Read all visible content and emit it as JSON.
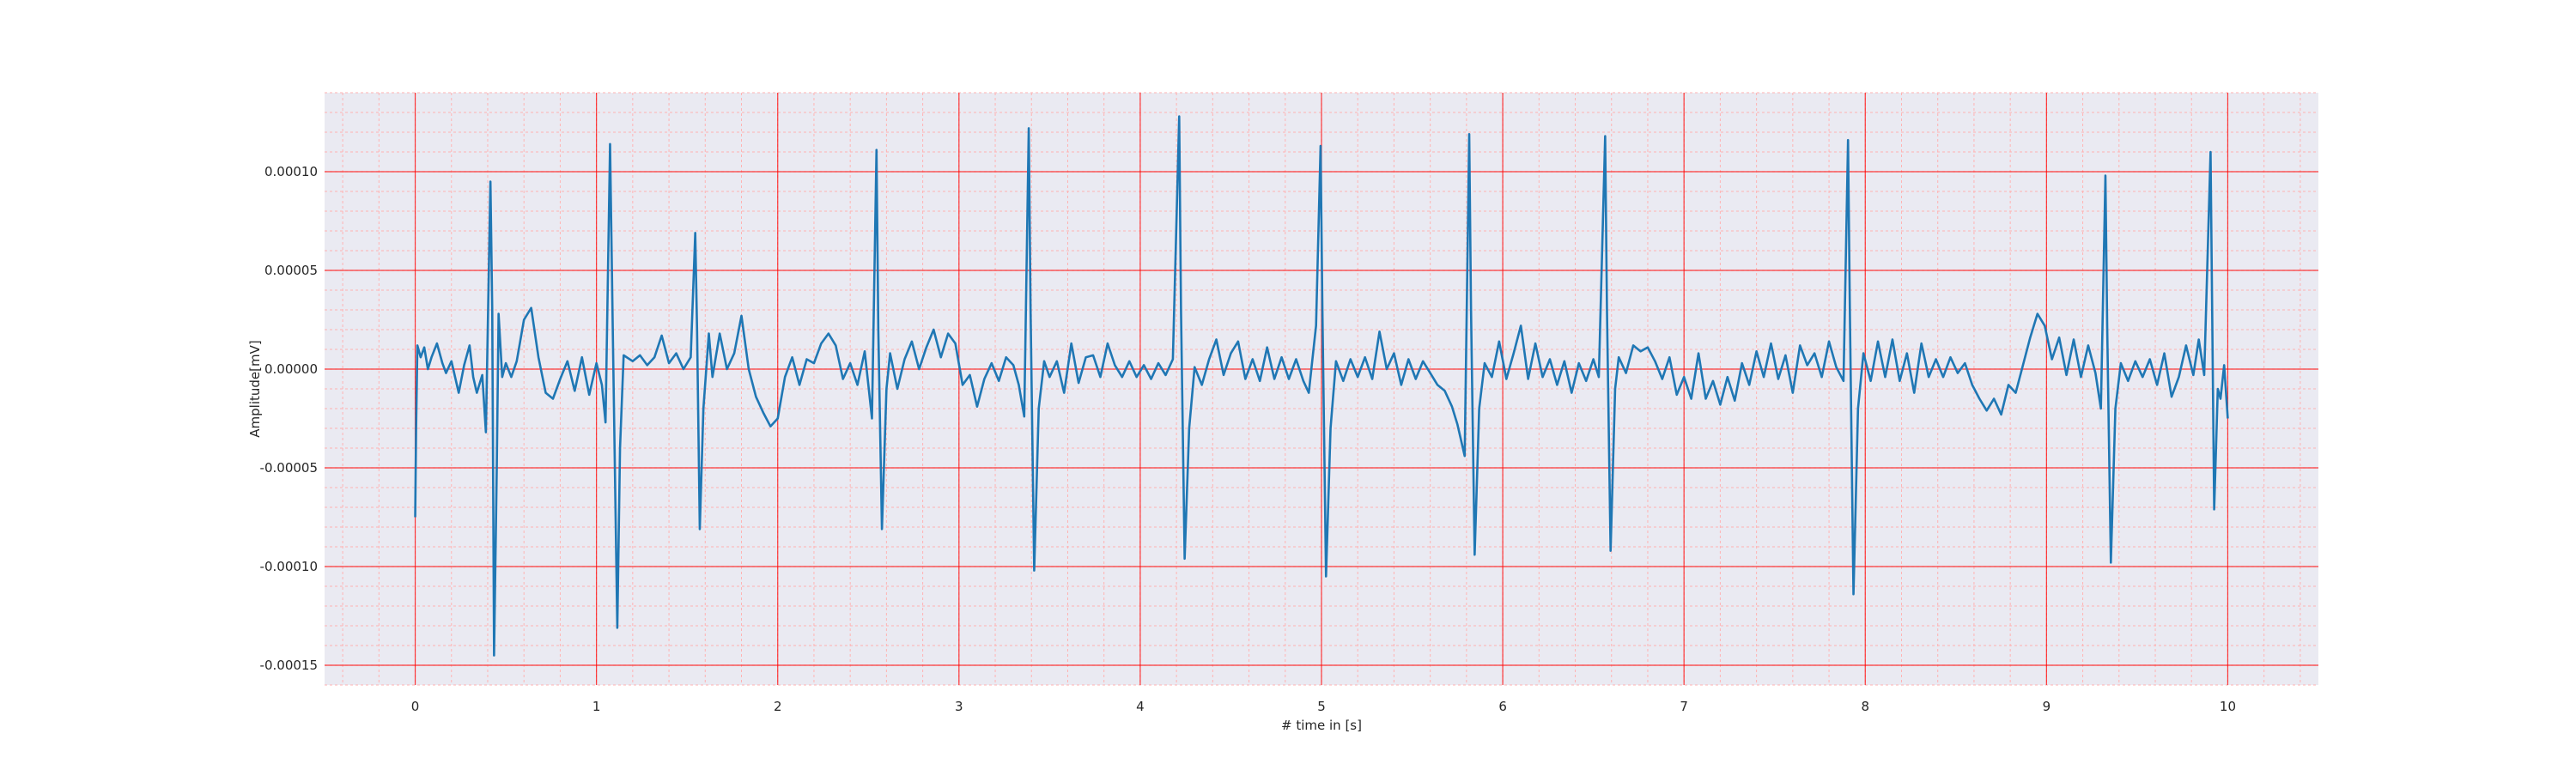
{
  "chart_data": {
    "type": "line",
    "title": "",
    "xlabel": "# time in [s]",
    "ylabel": "Amplitude[mV]",
    "xlim": [
      -0.5,
      10.5
    ],
    "ylim": [
      -0.00016,
      0.00014
    ],
    "x_ticks": [
      0,
      1,
      2,
      3,
      4,
      5,
      6,
      7,
      8,
      9,
      10
    ],
    "x_tick_labels": [
      "0",
      "1",
      "2",
      "3",
      "4",
      "5",
      "6",
      "7",
      "8",
      "9",
      "10"
    ],
    "y_ticks": [
      0.0001,
      5e-05,
      0.0,
      -5e-05,
      -0.0001,
      -0.00015
    ],
    "y_tick_labels": [
      "0.00010",
      "0.00005",
      "0.00000",
      "-0.00005",
      "-0.00010",
      "-0.00015"
    ],
    "grid": {
      "major": true,
      "minor": true,
      "major_color": "#ff0000",
      "minor_color": "#ffb3b3"
    },
    "colors": {
      "background": "#eaeaf2",
      "series": "#1f77b4"
    },
    "series": [
      {
        "name": "",
        "points": [
          [
            0.0,
            -7.5e-05
          ],
          [
            0.005,
            -3e-05
          ],
          [
            0.012,
            1.2e-05
          ],
          [
            0.03,
            6e-06
          ],
          [
            0.05,
            1.1e-05
          ],
          [
            0.07,
            0.0
          ],
          [
            0.09,
            6e-06
          ],
          [
            0.12,
            1.3e-05
          ],
          [
            0.15,
            3e-06
          ],
          [
            0.17,
            -2e-06
          ],
          [
            0.2,
            4e-06
          ],
          [
            0.24,
            -1.2e-05
          ],
          [
            0.27,
            2e-06
          ],
          [
            0.3,
            1.2e-05
          ],
          [
            0.32,
            -4e-06
          ],
          [
            0.34,
            -1.2e-05
          ],
          [
            0.37,
            -3e-06
          ],
          [
            0.39,
            -3.2e-05
          ],
          [
            0.415,
            9.5e-05
          ],
          [
            0.425,
            3e-05
          ],
          [
            0.435,
            -0.000145
          ],
          [
            0.45,
            -5e-05
          ],
          [
            0.46,
            2.8e-05
          ],
          [
            0.48,
            -4e-06
          ],
          [
            0.5,
            3e-06
          ],
          [
            0.53,
            -4e-06
          ],
          [
            0.56,
            4e-06
          ],
          [
            0.6,
            2.5e-05
          ],
          [
            0.64,
            3.1e-05
          ],
          [
            0.68,
            6e-06
          ],
          [
            0.72,
            -1.2e-05
          ],
          [
            0.76,
            -1.5e-05
          ],
          [
            0.8,
            -5e-06
          ],
          [
            0.84,
            4e-06
          ],
          [
            0.88,
            -1.1e-05
          ],
          [
            0.92,
            6e-06
          ],
          [
            0.96,
            -1.3e-05
          ],
          [
            1.0,
            3e-06
          ],
          [
            1.03,
            -8e-06
          ],
          [
            1.05,
            -2.7e-05
          ],
          [
            1.075,
            0.000114
          ],
          [
            1.09,
            2e-05
          ],
          [
            1.115,
            -0.000131
          ],
          [
            1.13,
            -4e-05
          ],
          [
            1.15,
            7e-06
          ],
          [
            1.2,
            4e-06
          ],
          [
            1.24,
            7e-06
          ],
          [
            1.28,
            2e-06
          ],
          [
            1.32,
            6e-06
          ],
          [
            1.36,
            1.7e-05
          ],
          [
            1.4,
            3e-06
          ],
          [
            1.44,
            8e-06
          ],
          [
            1.48,
            0.0
          ],
          [
            1.52,
            6e-06
          ],
          [
            1.545,
            6.9e-05
          ],
          [
            1.555,
            2e-05
          ],
          [
            1.57,
            -8.1e-05
          ],
          [
            1.59,
            -2e-05
          ],
          [
            1.62,
            1.8e-05
          ],
          [
            1.64,
            -4e-06
          ],
          [
            1.68,
            1.8e-05
          ],
          [
            1.72,
            0.0
          ],
          [
            1.76,
            8e-06
          ],
          [
            1.8,
            2.7e-05
          ],
          [
            1.84,
            0.0
          ],
          [
            1.88,
            -1.4e-05
          ],
          [
            1.92,
            -2.2e-05
          ],
          [
            1.96,
            -2.9e-05
          ],
          [
            2.0,
            -2.5e-05
          ],
          [
            2.04,
            -4e-06
          ],
          [
            2.08,
            6e-06
          ],
          [
            2.12,
            -8e-06
          ],
          [
            2.16,
            5e-06
          ],
          [
            2.2,
            3e-06
          ],
          [
            2.24,
            1.3e-05
          ],
          [
            2.28,
            1.8e-05
          ],
          [
            2.32,
            1.2e-05
          ],
          [
            2.36,
            -5e-06
          ],
          [
            2.4,
            3e-06
          ],
          [
            2.44,
            -8e-06
          ],
          [
            2.48,
            9e-06
          ],
          [
            2.52,
            -2.5e-05
          ],
          [
            2.545,
            0.000111
          ],
          [
            2.555,
            2e-05
          ],
          [
            2.575,
            -8.1e-05
          ],
          [
            2.6,
            -1e-05
          ],
          [
            2.62,
            8e-06
          ],
          [
            2.66,
            -1e-05
          ],
          [
            2.7,
            5e-06
          ],
          [
            2.74,
            1.4e-05
          ],
          [
            2.78,
            0.0
          ],
          [
            2.82,
            1.1e-05
          ],
          [
            2.86,
            2e-05
          ],
          [
            2.9,
            6e-06
          ],
          [
            2.94,
            1.8e-05
          ],
          [
            2.98,
            1.3e-05
          ],
          [
            3.02,
            -8e-06
          ],
          [
            3.06,
            -3e-06
          ],
          [
            3.1,
            -1.9e-05
          ],
          [
            3.14,
            -5e-06
          ],
          [
            3.18,
            3e-06
          ],
          [
            3.22,
            -6e-06
          ],
          [
            3.26,
            6e-06
          ],
          [
            3.3,
            2e-06
          ],
          [
            3.33,
            -8e-06
          ],
          [
            3.36,
            -2.4e-05
          ],
          [
            3.385,
            0.000122
          ],
          [
            3.395,
            3e-05
          ],
          [
            3.415,
            -0.000102
          ],
          [
            3.44,
            -2e-05
          ],
          [
            3.47,
            4e-06
          ],
          [
            3.5,
            -4e-06
          ],
          [
            3.54,
            4e-06
          ],
          [
            3.58,
            -1.2e-05
          ],
          [
            3.62,
            1.3e-05
          ],
          [
            3.66,
            -7e-06
          ],
          [
            3.7,
            6e-06
          ],
          [
            3.74,
            7e-06
          ],
          [
            3.78,
            -4e-06
          ],
          [
            3.82,
            1.3e-05
          ],
          [
            3.86,
            2e-06
          ],
          [
            3.9,
            -4e-06
          ],
          [
            3.94,
            4e-06
          ],
          [
            3.98,
            -4e-06
          ],
          [
            4.02,
            2e-06
          ],
          [
            4.06,
            -5e-06
          ],
          [
            4.1,
            3e-06
          ],
          [
            4.14,
            -3e-06
          ],
          [
            4.18,
            5e-06
          ],
          [
            4.215,
            0.000128
          ],
          [
            4.225,
            3e-05
          ],
          [
            4.245,
            -9.6e-05
          ],
          [
            4.27,
            -3e-05
          ],
          [
            4.3,
            1e-06
          ],
          [
            4.34,
            -8e-06
          ],
          [
            4.38,
            5e-06
          ],
          [
            4.42,
            1.5e-05
          ],
          [
            4.46,
            -3e-06
          ],
          [
            4.5,
            8e-06
          ],
          [
            4.54,
            1.4e-05
          ],
          [
            4.58,
            -5e-06
          ],
          [
            4.62,
            5e-06
          ],
          [
            4.66,
            -6e-06
          ],
          [
            4.7,
            1.1e-05
          ],
          [
            4.74,
            -5e-06
          ],
          [
            4.78,
            6e-06
          ],
          [
            4.82,
            -5e-06
          ],
          [
            4.86,
            5e-06
          ],
          [
            4.9,
            -6e-06
          ],
          [
            4.93,
            -1.2e-05
          ],
          [
            4.97,
            2.2e-05
          ],
          [
            4.995,
            0.000113
          ],
          [
            5.005,
            3e-05
          ],
          [
            5.025,
            -0.000105
          ],
          [
            5.05,
            -3e-05
          ],
          [
            5.08,
            4e-06
          ],
          [
            5.12,
            -6e-06
          ],
          [
            5.16,
            5e-06
          ],
          [
            5.2,
            -4e-06
          ],
          [
            5.24,
            6e-06
          ],
          [
            5.28,
            -5e-06
          ],
          [
            5.32,
            1.9e-05
          ],
          [
            5.36,
            0.0
          ],
          [
            5.4,
            8e-06
          ],
          [
            5.44,
            -8e-06
          ],
          [
            5.48,
            5e-06
          ],
          [
            5.52,
            -5e-06
          ],
          [
            5.56,
            4e-06
          ],
          [
            5.6,
            -2e-06
          ],
          [
            5.64,
            -8e-06
          ],
          [
            5.68,
            -1.1e-05
          ],
          [
            5.72,
            -1.9e-05
          ],
          [
            5.75,
            -2.8e-05
          ],
          [
            5.79,
            -4.4e-05
          ],
          [
            5.815,
            0.000119
          ],
          [
            5.825,
            3e-05
          ],
          [
            5.845,
            -9.4e-05
          ],
          [
            5.87,
            -2e-05
          ],
          [
            5.9,
            3e-06
          ],
          [
            5.94,
            -4e-06
          ],
          [
            5.98,
            1.4e-05
          ],
          [
            6.02,
            -5e-06
          ],
          [
            6.06,
            8e-06
          ],
          [
            6.1,
            2.2e-05
          ],
          [
            6.14,
            -5e-06
          ],
          [
            6.18,
            1.3e-05
          ],
          [
            6.22,
            -4e-06
          ],
          [
            6.26,
            5e-06
          ],
          [
            6.3,
            -8e-06
          ],
          [
            6.34,
            4e-06
          ],
          [
            6.38,
            -1.2e-05
          ],
          [
            6.42,
            3e-06
          ],
          [
            6.46,
            -6e-06
          ],
          [
            6.5,
            5e-06
          ],
          [
            6.53,
            -4e-06
          ],
          [
            6.565,
            0.000118
          ],
          [
            6.575,
            3e-05
          ],
          [
            6.595,
            -9.2e-05
          ],
          [
            6.62,
            -1e-05
          ],
          [
            6.64,
            6e-06
          ],
          [
            6.68,
            -2e-06
          ],
          [
            6.72,
            1.2e-05
          ],
          [
            6.76,
            9e-06
          ],
          [
            6.8,
            1.1e-05
          ],
          [
            6.84,
            4e-06
          ],
          [
            6.88,
            -5e-06
          ],
          [
            6.92,
            6e-06
          ],
          [
            6.96,
            -1.3e-05
          ],
          [
            7.0,
            -4e-06
          ],
          [
            7.04,
            -1.5e-05
          ],
          [
            7.08,
            8e-06
          ],
          [
            7.12,
            -1.5e-05
          ],
          [
            7.16,
            -6e-06
          ],
          [
            7.2,
            -1.8e-05
          ],
          [
            7.24,
            -4e-06
          ],
          [
            7.28,
            -1.6e-05
          ],
          [
            7.32,
            3e-06
          ],
          [
            7.36,
            -8e-06
          ],
          [
            7.4,
            9e-06
          ],
          [
            7.44,
            -4e-06
          ],
          [
            7.48,
            1.3e-05
          ],
          [
            7.52,
            -5e-06
          ],
          [
            7.56,
            7e-06
          ],
          [
            7.6,
            -1.2e-05
          ],
          [
            7.64,
            1.2e-05
          ],
          [
            7.68,
            2e-06
          ],
          [
            7.72,
            8e-06
          ],
          [
            7.76,
            -4e-06
          ],
          [
            7.8,
            1.4e-05
          ],
          [
            7.84,
            1e-06
          ],
          [
            7.88,
            -6e-06
          ],
          [
            7.905,
            0.000116
          ],
          [
            7.915,
            3e-05
          ],
          [
            7.935,
            -0.000114
          ],
          [
            7.96,
            -2e-05
          ],
          [
            7.99,
            8e-06
          ],
          [
            8.03,
            -6e-06
          ],
          [
            8.07,
            1.4e-05
          ],
          [
            8.11,
            -4e-06
          ],
          [
            8.15,
            1.5e-05
          ],
          [
            8.19,
            -6e-06
          ],
          [
            8.23,
            8e-06
          ],
          [
            8.27,
            -1.2e-05
          ],
          [
            8.31,
            1.3e-05
          ],
          [
            8.35,
            -4e-06
          ],
          [
            8.39,
            5e-06
          ],
          [
            8.43,
            -4e-06
          ],
          [
            8.47,
            6e-06
          ],
          [
            8.51,
            -2e-06
          ],
          [
            8.55,
            3e-06
          ],
          [
            8.59,
            -8e-06
          ],
          [
            8.63,
            -1.5e-05
          ],
          [
            8.67,
            -2.1e-05
          ],
          [
            8.71,
            -1.5e-05
          ],
          [
            8.75,
            -2.3e-05
          ],
          [
            8.79,
            -8e-06
          ],
          [
            8.83,
            -1.2e-05
          ],
          [
            8.87,
            2e-06
          ],
          [
            8.91,
            1.6e-05
          ],
          [
            8.95,
            2.8e-05
          ],
          [
            8.99,
            2.2e-05
          ],
          [
            9.03,
            5e-06
          ],
          [
            9.07,
            1.6e-05
          ],
          [
            9.11,
            -3e-06
          ],
          [
            9.15,
            1.5e-05
          ],
          [
            9.19,
            -4e-06
          ],
          [
            9.23,
            1.2e-05
          ],
          [
            9.27,
            -2e-06
          ],
          [
            9.3,
            -2e-05
          ],
          [
            9.325,
            9.8e-05
          ],
          [
            9.335,
            2e-05
          ],
          [
            9.355,
            -9.8e-05
          ],
          [
            9.38,
            -2e-05
          ],
          [
            9.41,
            3e-06
          ],
          [
            9.45,
            -6e-06
          ],
          [
            9.49,
            4e-06
          ],
          [
            9.53,
            -4e-06
          ],
          [
            9.57,
            5e-06
          ],
          [
            9.61,
            -8e-06
          ],
          [
            9.65,
            8e-06
          ],
          [
            9.69,
            -1.4e-05
          ],
          [
            9.73,
            -4e-06
          ],
          [
            9.77,
            1.2e-05
          ],
          [
            9.81,
            -3e-06
          ],
          [
            9.84,
            1.5e-05
          ],
          [
            9.87,
            -3e-06
          ],
          [
            9.905,
            0.00011
          ],
          [
            9.915,
            2e-05
          ],
          [
            9.925,
            -7.1e-05
          ],
          [
            9.945,
            -1e-05
          ],
          [
            9.96,
            -1.5e-05
          ],
          [
            9.98,
            2e-06
          ],
          [
            10.0,
            -2.5e-05
          ]
        ]
      }
    ]
  }
}
